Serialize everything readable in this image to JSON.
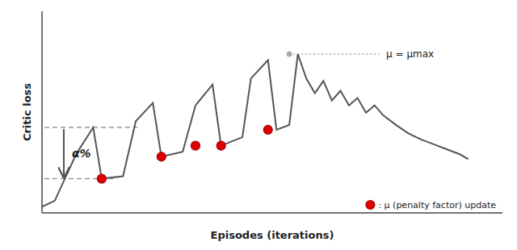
{
  "chart_data": {
    "type": "line",
    "x_label": "Episodes (iterations)",
    "y_label": "Critic loss",
    "xlim": [
      0,
      108
    ],
    "ylim": [
      0.0,
      1.65
    ],
    "tick_labels": false,
    "grid": false,
    "legend": "lower right",
    "series": [
      {
        "type": "line",
        "color": "#555555",
        "x": [
          0,
          3,
          8,
          12,
          14,
          19,
          22,
          26,
          28,
          33,
          36,
          40,
          42,
          47,
          49,
          53,
          55,
          58,
          60,
          62,
          64,
          66,
          68,
          70,
          72,
          74,
          76,
          78,
          80,
          83,
          86,
          89,
          92,
          95,
          98,
          100
        ],
        "values": [
          0.05,
          0.1,
          0.48,
          0.7,
          0.28,
          0.3,
          0.75,
          0.9,
          0.46,
          0.5,
          0.88,
          1.05,
          0.55,
          0.62,
          1.1,
          1.25,
          0.68,
          0.72,
          1.3,
          1.1,
          0.98,
          1.08,
          0.92,
          1.0,
          0.88,
          0.94,
          0.82,
          0.88,
          0.8,
          0.72,
          0.65,
          0.6,
          0.56,
          0.52,
          0.48,
          0.44
        ]
      },
      {
        "type": "scatter",
        "name": ": μ (penalty factor) update",
        "color": "#dd0000",
        "x": [
          14,
          28,
          36,
          42,
          53
        ],
        "values": [
          0.28,
          0.46,
          0.55,
          0.55,
          0.68
        ]
      }
    ],
    "annotations": [
      {
        "text": "μ = μmax",
        "x": 58,
        "y": 1.3
      },
      {
        "text": "α%",
        "y": [
          0.7,
          0.28
        ]
      }
    ]
  }
}
